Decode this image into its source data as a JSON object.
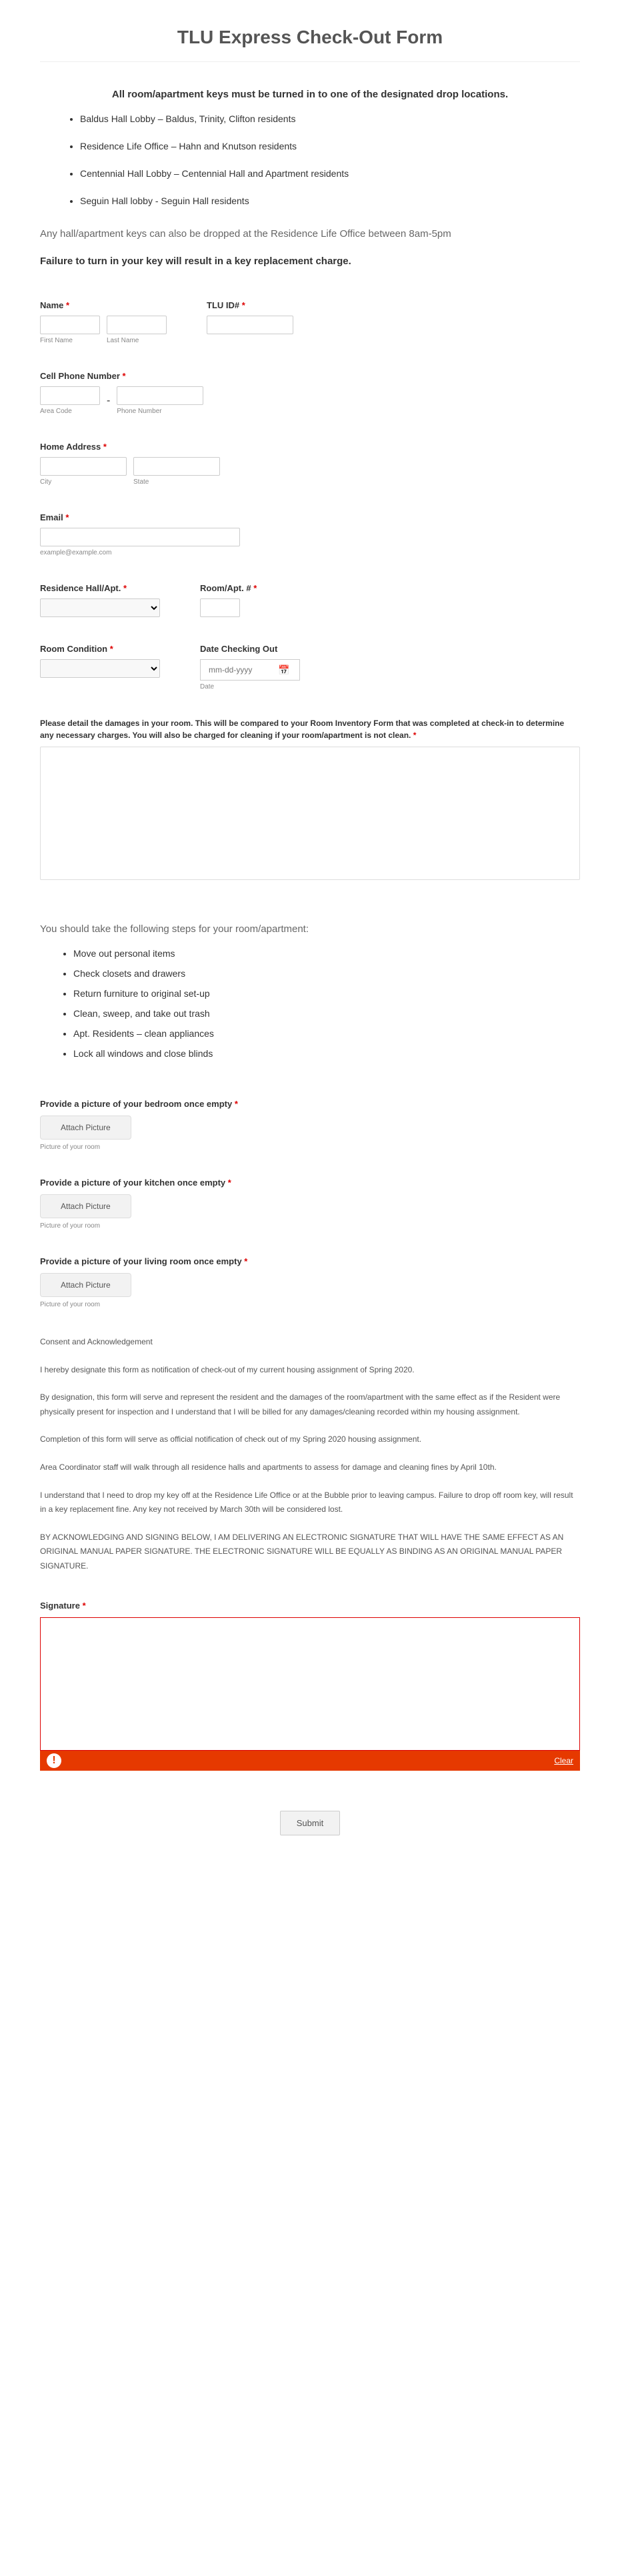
{
  "title": "TLU Express Check-Out Form",
  "intro": "All room/apartment keys must be turned in to one of the designated drop locations.",
  "locations": [
    "Baldus Hall Lobby – Baldus, Trinity, Clifton residents",
    "Residence Life Office – Hahn and Knutson residents",
    "Centennial Hall Lobby – Centennial Hall and Apartment residents",
    "Seguin Hall lobby - Seguin Hall residents"
  ],
  "note": "Any hall/apartment keys can also be dropped at the Residence Life Office between 8am-5pm",
  "warning": "Failure to turn in your key will result in a key replacement charge.",
  "fields": {
    "name": "Name",
    "first": "First Name",
    "last": "Last Name",
    "tluid": "TLU ID#",
    "phone": "Cell Phone Number",
    "area": "Area Code",
    "phonenum": "Phone Number",
    "address": "Home Address",
    "city": "City",
    "state": "State",
    "email": "Email",
    "emailex": "example@example.com",
    "reshall": "Residence Hall/Apt.",
    "roomapt": "Room/Apt. #",
    "roomcond": "Room Condition",
    "checkout": "Date Checking Out",
    "dateph": "mm-dd-yyyy",
    "datelabel": "Date"
  },
  "damage_label": "Please detail the damages in your room. This will be compared to your Room Inventory Form that was completed at check-in to determine any necessary charges. You will also be charged for cleaning if your room/apartment is not clean.",
  "steps_intro": "You should take the following steps for your room/apartment:",
  "steps": [
    "Move out personal items",
    "Check closets and drawers",
    "Return furniture to original set-up",
    "Clean, sweep, and take out trash",
    "Apt. Residents – clean appliances",
    "Lock all windows and close blinds"
  ],
  "pics": {
    "bedroom": "Provide a picture of your bedroom once empty",
    "kitchen": "Provide a picture of your kitchen once empty",
    "living": "Provide a picture of your living room once empty",
    "attach": "Attach Picture",
    "sub": "Picture of your room"
  },
  "consent": {
    "title": "Consent and Acknowledgement",
    "p1": "I hereby designate this form as notification of check-out of my current housing assignment of Spring 2020.",
    "p2": "By designation, this form will serve and represent the resident and the damages of the room/apartment with the same effect as if the Resident were physically present for inspection and I understand that I will be billed for any damages/cleaning recorded within my housing assignment.",
    "p3": "Completion of this form will serve as official notification of check out of my Spring 2020 housing assignment.",
    "p4": "Area Coordinator staff will walk through all residence halls and apartments to assess for damage and cleaning fines by April 10th.",
    "p5": "I understand that I need to drop my key off at the Residence Life Office or at the Bubble prior to leaving campus.  Failure to drop off room key, will result in a key replacement fine. Any key not received by March 30th will be considered lost.",
    "p6": "BY ACKNOWLEDGING AND SIGNING BELOW, I AM DELIVERING AN ELECTRONIC SIGNATURE THAT WILL HAVE THE SAME EFFECT AS AN ORIGINAL MANUAL PAPER SIGNATURE. THE ELECTRONIC SIGNATURE WILL BE EQUALLY AS BINDING AS AN ORIGINAL MANUAL PAPER SIGNATURE."
  },
  "signature": "Signature",
  "clear": "Clear",
  "submit": "Submit"
}
